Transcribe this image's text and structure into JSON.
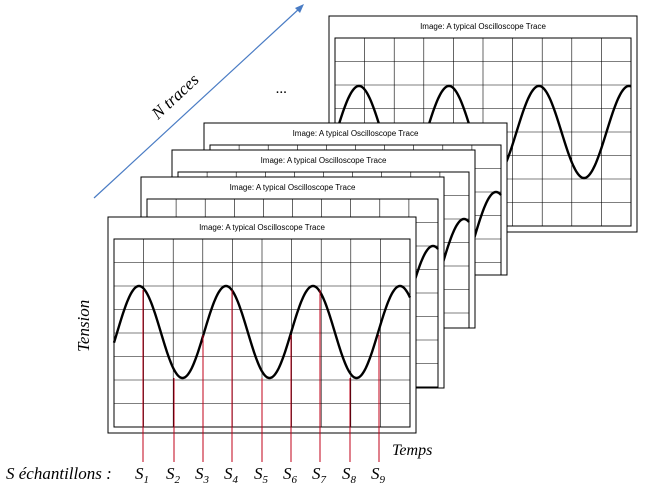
{
  "frame_title": "Image: A typical Oscilloscope Trace",
  "labels": {
    "n_traces": "N traces",
    "ellipsis": "...",
    "tension": "Tension",
    "temps": "Temps",
    "samples_prefix": "S échantillons :"
  },
  "samples": [
    {
      "letter": "S",
      "index": "1"
    },
    {
      "letter": "S",
      "index": "2"
    },
    {
      "letter": "S",
      "index": "3"
    },
    {
      "letter": "S",
      "index": "4"
    },
    {
      "letter": "S",
      "index": "5"
    },
    {
      "letter": "S",
      "index": "6"
    },
    {
      "letter": "S",
      "index": "7"
    },
    {
      "letter": "S",
      "index": "8"
    },
    {
      "letter": "S",
      "index": "9"
    }
  ],
  "colors": {
    "arrow": "#4a7cc4",
    "sample_line": "#c0001a",
    "trace": "#000000",
    "grid": "#000000"
  }
}
